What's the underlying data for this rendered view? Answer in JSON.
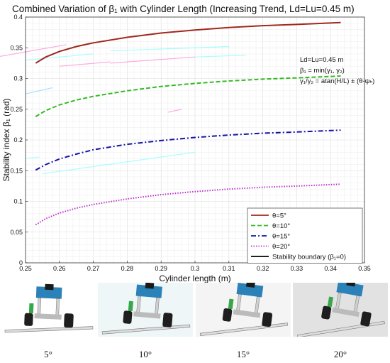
{
  "chart_data": {
    "type": "line",
    "title": "Combined Variation of β₁ with Cylinder Length (Increasing Trend, Ld=Lu=0.45 m)",
    "xlabel": "Cylinder length (m)",
    "ylabel": "Stability index β₁ (rad)",
    "xlim": [
      0.25,
      0.35
    ],
    "ylim": [
      0,
      0.4
    ],
    "xticks": [
      "0.25",
      "0.26",
      "0.27",
      "0.28",
      "0.29",
      "0.3",
      "0.31",
      "0.32",
      "0.33",
      "0.34",
      "0.35"
    ],
    "yticks": [
      "0",
      "0.05",
      "0.1",
      "0.15",
      "0.2",
      "0.25",
      "0.3",
      "0.35",
      "0.4"
    ],
    "grid": true,
    "legend_position": "bottom-right",
    "annotation": {
      "line1": "Ld=Lu=0.45 m",
      "line2": "β₁ = min(γ₁, γ₂)",
      "line3": "γ₁/γ₂ = atan(H/L) ± (θ-ψₕ)"
    },
    "x": [
      0.253,
      0.256,
      0.26,
      0.265,
      0.27,
      0.28,
      0.29,
      0.3,
      0.31,
      0.32,
      0.33,
      0.343
    ],
    "series": [
      {
        "name": "θ=5°",
        "color": "#a0281e",
        "dash": "solid",
        "values": [
          0.325,
          0.335,
          0.344,
          0.352,
          0.358,
          0.367,
          0.374,
          0.379,
          0.383,
          0.386,
          0.388,
          0.391
        ]
      },
      {
        "name": "θ=10°",
        "color": "#33bb22",
        "dash": "dashed",
        "values": [
          0.238,
          0.248,
          0.257,
          0.265,
          0.271,
          0.28,
          0.287,
          0.292,
          0.296,
          0.299,
          0.301,
          0.304
        ]
      },
      {
        "name": "θ=15°",
        "color": "#1515a8",
        "dash": "dashdot",
        "values": [
          0.151,
          0.16,
          0.169,
          0.177,
          0.184,
          0.193,
          0.199,
          0.204,
          0.208,
          0.211,
          0.213,
          0.216
        ]
      },
      {
        "name": "θ=20°",
        "color": "#bb33cc",
        "dash": "dotted",
        "values": [
          0.062,
          0.072,
          0.081,
          0.089,
          0.095,
          0.104,
          0.111,
          0.116,
          0.12,
          0.123,
          0.125,
          0.128
        ]
      },
      {
        "name": "Stability boundary (β₁=0)",
        "color": "#000000",
        "dash": "solid",
        "values": [
          0,
          0,
          0,
          0,
          0,
          0,
          0,
          0,
          0,
          0,
          0,
          0
        ]
      }
    ]
  },
  "robot_photos": {
    "captions": [
      "5°",
      "10°",
      "15°",
      "20°"
    ],
    "tilt_degrees": [
      5,
      10,
      15,
      20
    ]
  }
}
